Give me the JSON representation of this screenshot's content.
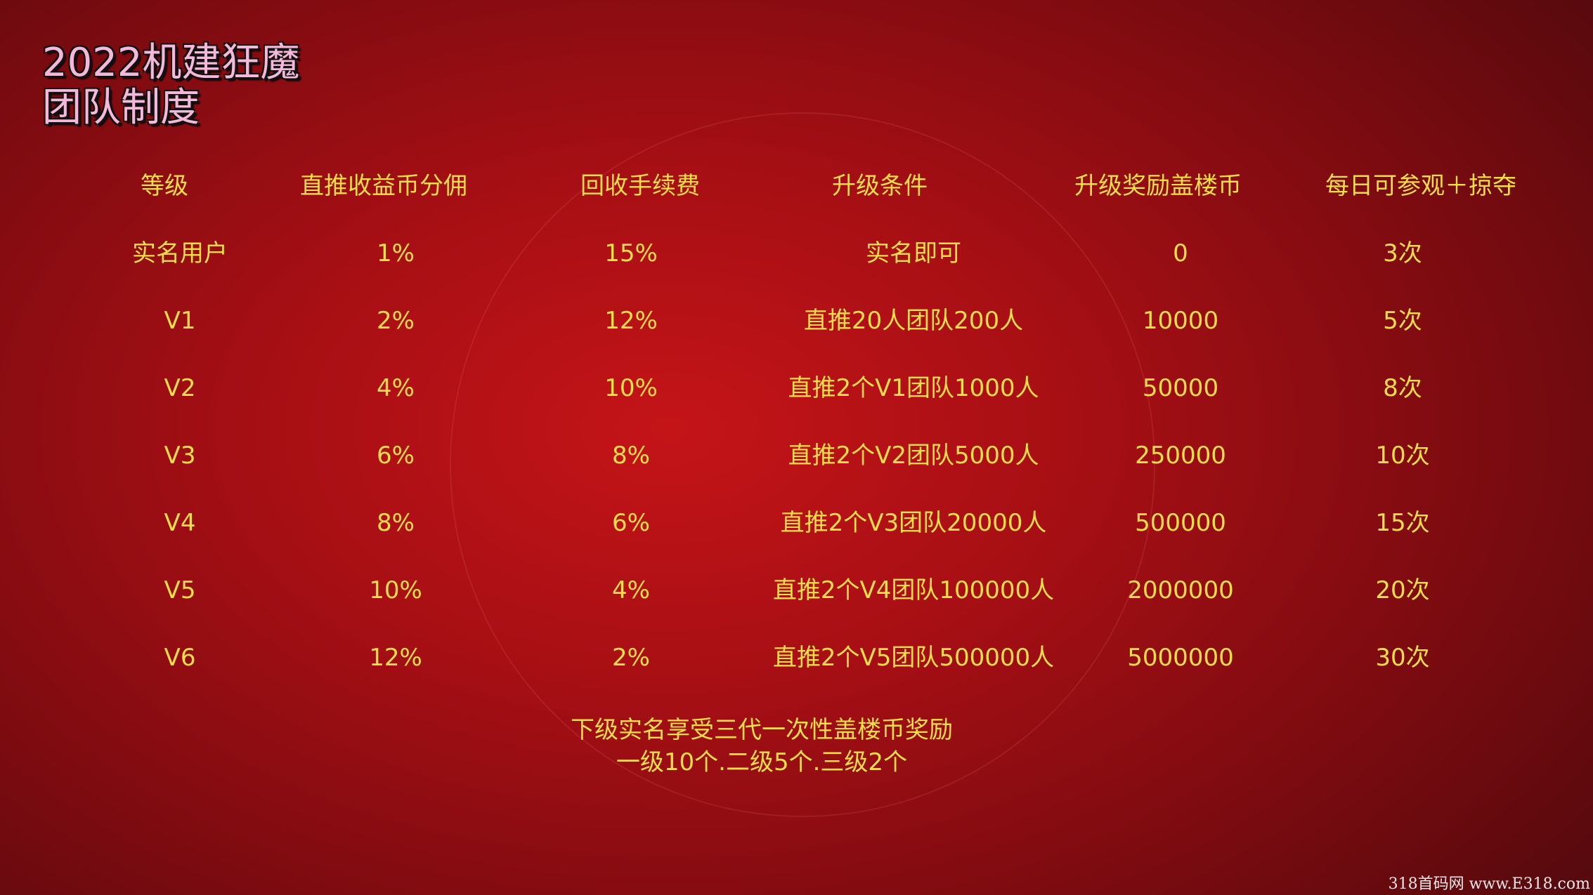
{
  "title": {
    "line1": "2022机建狂魔",
    "line2": "团队制度"
  },
  "table": {
    "headers": [
      "等级",
      "直推收益币分佣",
      "回收手续费",
      "升级条件",
      "升级奖励盖楼币",
      "每日可参观＋掠夺"
    ],
    "rows": [
      [
        "实名用户",
        "1%",
        "15%",
        "实名即可",
        "0",
        "3次"
      ],
      [
        "V1",
        "2%",
        "12%",
        "直推20人团队200人",
        "10000",
        "5次"
      ],
      [
        "V2",
        "4%",
        "10%",
        "直推2个V1团队1000人",
        "50000",
        "8次"
      ],
      [
        "V3",
        "6%",
        "8%",
        "直推2个V2团队5000人",
        "250000",
        "10次"
      ],
      [
        "V4",
        "8%",
        "6%",
        "直推2个V3团队20000人",
        "500000",
        "15次"
      ],
      [
        "V5",
        "10%",
        "4%",
        "直推2个V4团队100000人",
        "2000000",
        "20次"
      ],
      [
        "V6",
        "12%",
        "2%",
        "直推2个V5团队500000人",
        "5000000",
        "30次"
      ]
    ]
  },
  "footer": {
    "line1": "下级实名享受三代一次性盖楼币奖励",
    "line2": "一级10个.二级5个.三级2个"
  },
  "watermark": "318首码网 www.E318.com",
  "colors": {
    "text": "#f6dd4a",
    "title": "#f4b8d8",
    "background": "#a50f14"
  }
}
